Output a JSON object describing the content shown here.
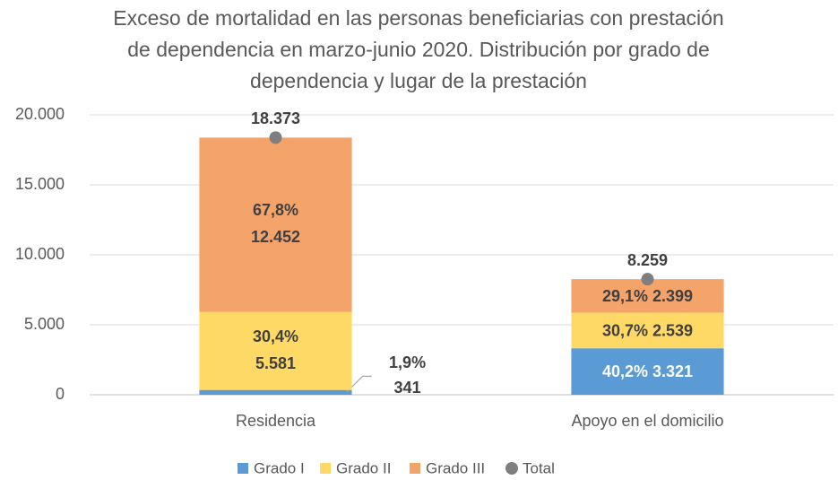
{
  "chart_data": {
    "type": "stacked_bar",
    "title": [
      "Exceso de mortalidad en las personas beneficiarias con prestación",
      "de dependencia en marzo-junio 2020. Distribución por grado de",
      "dependencia y lugar de la prestación"
    ],
    "categories": [
      "Residencia",
      "Apoyo en el domicilio"
    ],
    "series": [
      {
        "name": "Grado I",
        "color": "#5b9bd5",
        "values": [
          341,
          3321
        ],
        "value_labels": [
          "341",
          "3.321"
        ],
        "share_labels": [
          "1,9%",
          "40,2%"
        ]
      },
      {
        "name": "Grado II",
        "color": "#ffd966",
        "values": [
          5581,
          2539
        ],
        "value_labels": [
          "5.581",
          "2.539"
        ],
        "share_labels": [
          "30,4%",
          "30,7%"
        ]
      },
      {
        "name": "Grado III",
        "color": "#f4a36b",
        "values": [
          12452,
          2399
        ],
        "value_labels": [
          "12.452",
          "2.399"
        ],
        "share_labels": [
          "67,8%",
          "29,1%"
        ]
      }
    ],
    "total": {
      "name": "Total",
      "color": "#7f7f7f",
      "values": [
        18373,
        8259
      ],
      "value_labels": [
        "18.373",
        "8.259"
      ]
    },
    "ylim": [
      0,
      20000
    ],
    "yticks": [
      0,
      {
        "value": 5000,
        "label": "5.000"
      },
      {
        "value": 10000,
        "label": "10.000"
      },
      {
        "value": 15000,
        "label": "15.000"
      },
      {
        "value": 20000,
        "label": "20.000"
      }
    ],
    "grid": true,
    "legend": "bottom"
  }
}
